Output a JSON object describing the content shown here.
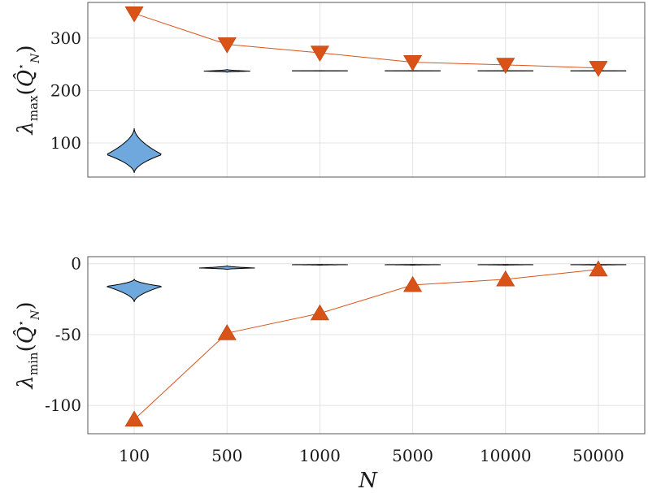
{
  "chart_data": [
    {
      "type": "violin+line",
      "categories": [
        "100",
        "500",
        "1000",
        "5000",
        "10000",
        "50000"
      ],
      "ylabel": "λmax(Q̂⋆N)",
      "ylabel_parts": {
        "symbol": "λ",
        "sub": "max",
        "arg": "Q̂",
        "arg_sup": "⋆",
        "arg_sub": "N"
      },
      "yticks": [
        100,
        200,
        300
      ],
      "ylim": [
        35,
        368
      ],
      "grid": true,
      "line_series": {
        "marker": "triangle-down",
        "values": [
          347,
          288,
          272,
          254,
          249,
          243
        ]
      },
      "violins": [
        {
          "category": "100",
          "min": 43,
          "max": 128,
          "median": 78,
          "max_half_width_frac": 0.3
        },
        {
          "category": "500",
          "min": 235,
          "max": 240,
          "median": 237,
          "max_half_width_frac": 0.25
        },
        {
          "category": "1000",
          "min": 237,
          "max": 238,
          "median": 237.5,
          "max_half_width_frac": 0.3
        },
        {
          "category": "5000",
          "min": 237,
          "max": 238,
          "median": 237.5,
          "max_half_width_frac": 0.3
        },
        {
          "category": "10000",
          "min": 237,
          "max": 238,
          "median": 237.5,
          "max_half_width_frac": 0.3
        },
        {
          "category": "50000",
          "min": 237,
          "max": 238,
          "median": 237.5,
          "max_half_width_frac": 0.3
        }
      ]
    },
    {
      "type": "violin+line",
      "categories": [
        "100",
        "500",
        "1000",
        "5000",
        "10000",
        "50000"
      ],
      "xlabel": "N",
      "ylabel": "λmin(Q̂⋆N)",
      "ylabel_parts": {
        "symbol": "λ",
        "sub": "min",
        "arg": "Q̂",
        "arg_sup": "⋆",
        "arg_sub": "N"
      },
      "yticks": [
        0,
        -50,
        -100
      ],
      "ytick_labels": [
        "0",
        "-50",
        "-100"
      ],
      "ylim": [
        -120,
        5
      ],
      "grid": true,
      "line_series": {
        "marker": "triangle-up",
        "values": [
          -110,
          -49,
          -35,
          -15,
          -11,
          -4
        ]
      },
      "violins": [
        {
          "category": "100",
          "min": -27,
          "max": -11,
          "median": -16,
          "max_half_width_frac": 0.3
        },
        {
          "category": "500",
          "min": -4,
          "max": -1.5,
          "median": -3,
          "max_half_width_frac": 0.3
        },
        {
          "category": "1000",
          "min": -1,
          "max": -0.5,
          "median": -0.7,
          "max_half_width_frac": 0.3
        },
        {
          "category": "5000",
          "min": -1,
          "max": -0.5,
          "median": -0.7,
          "max_half_width_frac": 0.3
        },
        {
          "category": "10000",
          "min": -1,
          "max": -0.5,
          "median": -0.7,
          "max_half_width_frac": 0.3
        },
        {
          "category": "50000",
          "min": -1,
          "max": -0.5,
          "median": -0.7,
          "max_half_width_frac": 0.3
        }
      ]
    }
  ],
  "colors": {
    "line": "#d95319",
    "violin_fill": "#6fa8dc",
    "violin_stroke": "#000000",
    "grid": "#e3e3e3"
  }
}
